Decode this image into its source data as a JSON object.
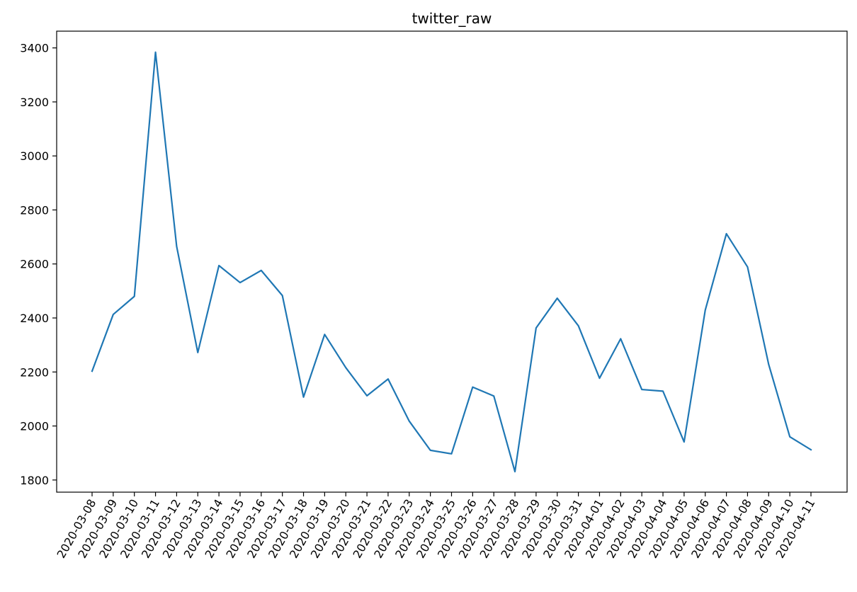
{
  "chart_data": {
    "type": "line",
    "title": "twitter_raw",
    "xlabel": "",
    "ylabel": "",
    "x": [
      "2020-03-08",
      "2020-03-09",
      "2020-03-10",
      "2020-03-11",
      "2020-03-12",
      "2020-03-13",
      "2020-03-14",
      "2020-03-15",
      "2020-03-16",
      "2020-03-17",
      "2020-03-18",
      "2020-03-19",
      "2020-03-20",
      "2020-03-21",
      "2020-03-22",
      "2020-03-23",
      "2020-03-24",
      "2020-03-25",
      "2020-03-26",
      "2020-03-27",
      "2020-03-28",
      "2020-03-29",
      "2020-03-30",
      "2020-03-31",
      "2020-04-01",
      "2020-04-02",
      "2020-04-03",
      "2020-04-04",
      "2020-04-05",
      "2020-04-06",
      "2020-04-07",
      "2020-04-08",
      "2020-04-09",
      "2020-04-10",
      "2020-04-11"
    ],
    "series": [
      {
        "values": [
          2203,
          2413,
          2480,
          3384,
          2665,
          2272,
          2594,
          2531,
          2576,
          2483,
          2107,
          2339,
          2216,
          2112,
          2174,
          2018,
          1910,
          1897,
          2144,
          2111,
          1831,
          2363,
          2473,
          2371,
          2177,
          2323,
          2135,
          2129,
          1941,
          2429,
          2712,
          2589,
          2228,
          1960,
          1912
        ],
        "color": "#1f77b4"
      }
    ],
    "yticks": [
      1800,
      2000,
      2200,
      2400,
      2600,
      2800,
      3000,
      3200,
      3400
    ],
    "ylim": [
      1755,
      3462
    ],
    "grid": false,
    "legend": "none"
  }
}
